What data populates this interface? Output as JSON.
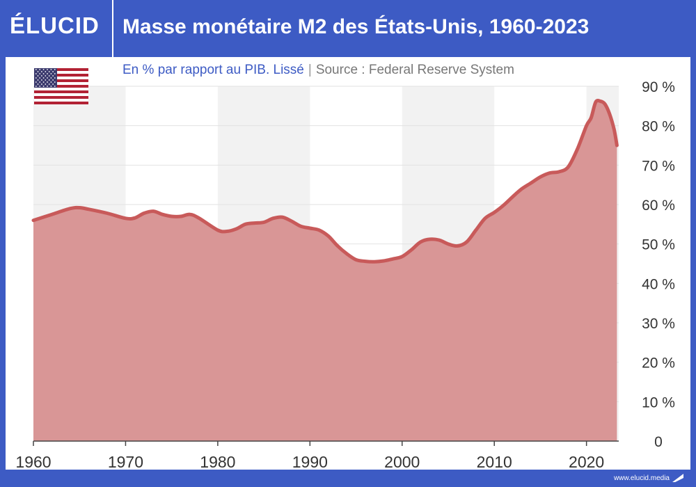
{
  "header": {
    "logo": "ÉLUCID",
    "title": "Masse monétaire M2 des États-Unis, 1960-2023"
  },
  "subtitle": {
    "unit": "En % par rapport au PIB. Lissé",
    "separator": "|",
    "source": "Source : Federal Reserve System"
  },
  "footer": {
    "url": "www.elucid.media"
  },
  "flag_icon": "us-flag-icon",
  "colors": {
    "brand": "#3d5bc4",
    "line": "#c85a5a",
    "area": "#d99696",
    "band": "#f2f2f2"
  },
  "chart_data": {
    "type": "area",
    "title": "Masse monétaire M2 des États-Unis, 1960-2023",
    "subtitle": "En % par rapport au PIB. Lissé",
    "xlabel": "",
    "ylabel": "",
    "x_ticks": [
      "1960",
      "1970",
      "1980",
      "1990",
      "2000",
      "2010",
      "2020"
    ],
    "y_ticks": [
      "0",
      "10 %",
      "20 %",
      "30 %",
      "40 %",
      "50 %",
      "60 %",
      "70 %",
      "80 %",
      "90 %"
    ],
    "xlim": [
      1960,
      2023.5
    ],
    "ylim": [
      0,
      90
    ],
    "grid": true,
    "series": [
      {
        "x": [
          1960,
          1962,
          1964,
          1965,
          1966,
          1968,
          1970,
          1971,
          1972,
          1973,
          1974,
          1975,
          1976,
          1977,
          1978,
          1980,
          1981,
          1982,
          1983,
          1984,
          1985,
          1986,
          1987,
          1988,
          1989,
          1990,
          1991,
          1992,
          1993,
          1994,
          1995,
          1996,
          1997,
          1998,
          1999,
          2000,
          2001,
          2002,
          2003,
          2004,
          2005,
          2006,
          2007,
          2008,
          2009,
          2010,
          2011,
          2012,
          2013,
          2014,
          2015,
          2016,
          2017,
          2018,
          2019,
          2020,
          2020.5,
          2021,
          2021.5,
          2022,
          2022.5,
          2023,
          2023.3
        ],
        "values": [
          56,
          57.5,
          59,
          59.2,
          58.8,
          57.8,
          56.5,
          56.6,
          57.8,
          58.3,
          57.5,
          57,
          57,
          57.5,
          56.5,
          53.5,
          53.2,
          53.8,
          55,
          55.3,
          55.5,
          56.5,
          56.8,
          55.8,
          54.5,
          54,
          53.5,
          52,
          49.5,
          47.5,
          46,
          45.6,
          45.5,
          45.7,
          46.2,
          46.8,
          48.5,
          50.5,
          51.2,
          51,
          50,
          49.5,
          50.5,
          53.5,
          56.5,
          58,
          59.8,
          62,
          64,
          65.5,
          67,
          68,
          68.3,
          69.5,
          74,
          80,
          82,
          86,
          86.2,
          85.5,
          83,
          79,
          75
        ]
      }
    ]
  }
}
